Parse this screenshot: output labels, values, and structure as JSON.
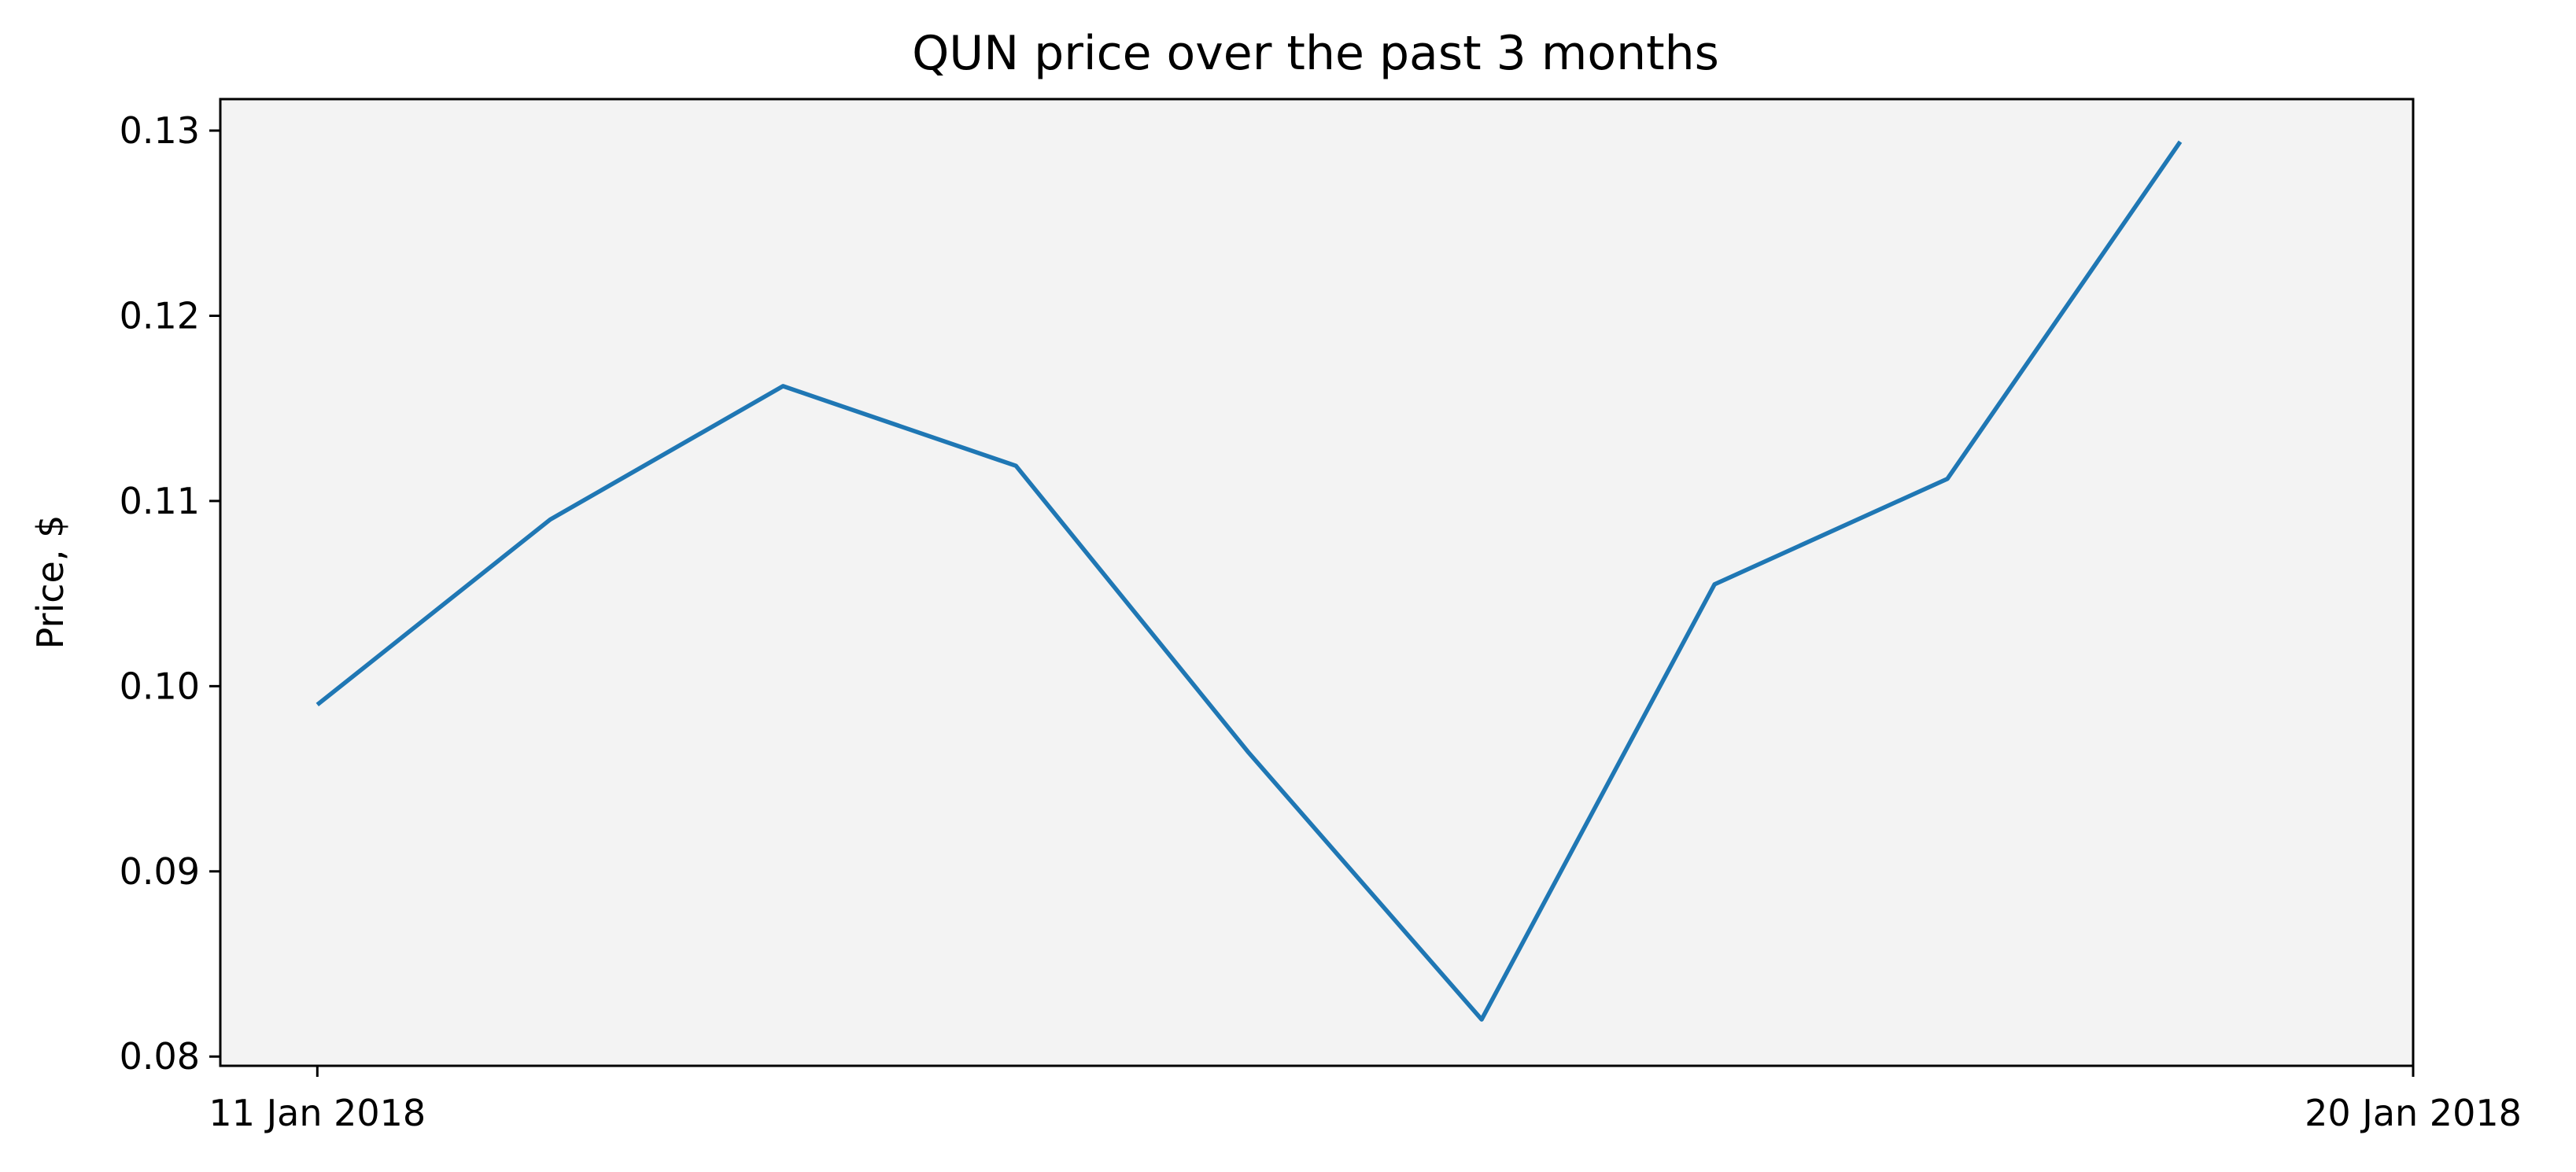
{
  "chart_data": {
    "type": "line",
    "title": "QUN price over the past 3 months",
    "xlabel": "",
    "ylabel": "Price, $",
    "x": [
      "2018-01-11",
      "2018-01-12",
      "2018-01-13",
      "2018-01-14",
      "2018-01-15",
      "2018-01-16",
      "2018-01-17",
      "2018-01-18",
      "2018-01-19"
    ],
    "values": [
      0.099,
      0.109,
      0.1162,
      0.1119,
      0.0964,
      0.082,
      0.1055,
      0.1112,
      0.1294
    ],
    "xlim": [
      "2018-01-10 14:00",
      "2018-01-20"
    ],
    "ylim": [
      0.0795,
      0.1317
    ],
    "xticks": [
      {
        "value": "2018-01-11",
        "label": "11 Jan 2018"
      },
      {
        "value": "2018-01-20",
        "label": "20 Jan 2018"
      }
    ],
    "yticks": [
      {
        "value": 0.08,
        "label": "0.08"
      },
      {
        "value": 0.09,
        "label": "0.09"
      },
      {
        "value": 0.1,
        "label": "0.10"
      },
      {
        "value": 0.11,
        "label": "0.11"
      },
      {
        "value": 0.12,
        "label": "0.12"
      },
      {
        "value": 0.13,
        "label": "0.13"
      }
    ],
    "grid": false,
    "legend": "none",
    "colors": {
      "line": "#1f77b4",
      "background": "#f3f3f3"
    }
  }
}
